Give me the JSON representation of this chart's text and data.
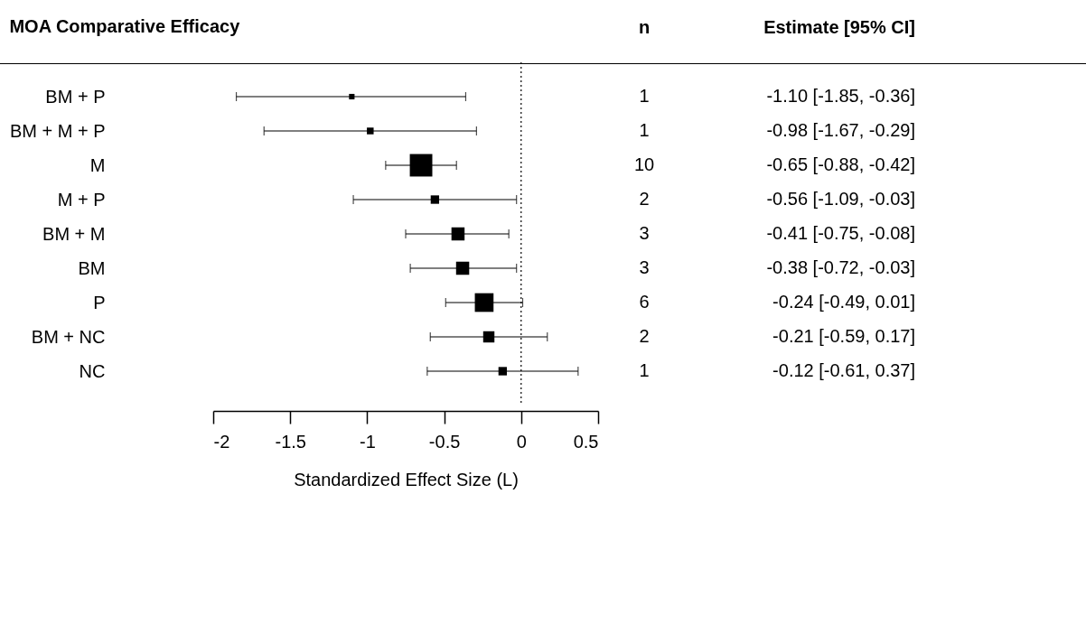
{
  "chart_data": {
    "type": "bubble",
    "title": "MOA Comparative Efficacy",
    "xlabel": "Standardized Effect Size (L)",
    "orientation": "horizontal",
    "marker": "square",
    "color": "#000000",
    "categories": [
      "BM + P",
      "BM + M + P",
      "M",
      "M + P",
      "BM + M",
      "BM",
      "P",
      "BM + NC",
      "NC"
    ],
    "values": [
      -1.1,
      -0.98,
      -0.65,
      -0.56,
      -0.41,
      -0.38,
      -0.24,
      -0.21,
      -0.12
    ],
    "errors": [
      [
        -1.85,
        -0.36
      ],
      [
        -1.67,
        -0.29
      ],
      [
        -0.88,
        -0.42
      ],
      [
        -1.09,
        -0.03
      ],
      [
        -0.75,
        -0.08
      ],
      [
        -0.72,
        -0.03
      ],
      [
        -0.49,
        0.01
      ],
      [
        -0.59,
        0.17
      ],
      [
        -0.61,
        0.37
      ]
    ],
    "sizes": [
      0.06,
      0.09,
      1,
      0.14,
      0.34,
      0.34,
      0.69,
      0.25,
      0.14
    ],
    "value_labels": [
      "-1.10 [-1.85, -0.36]",
      "-0.98 [-1.67, -0.29]",
      "-0.65 [-0.88, -0.42]",
      "-0.56 [-1.09, -0.03]",
      "-0.41 [-0.75, -0.08]",
      "-0.38 [-0.72, -0.03]",
      "-0.24 [-0.49,  0.01]",
      "-0.21 [-0.59,  0.17]",
      "-0.12 [-0.61,  0.37]"
    ],
    "xlim": [
      -2,
      0.5
    ],
    "xticks": [
      -2,
      -1.5,
      -1,
      -0.5,
      0,
      0.5
    ],
    "ref_lines": [
      {
        "axis": "x",
        "value": 0,
        "line_style": "dotted"
      }
    ],
    "grid": false,
    "legend": false,
    "annotations": [
      "n",
      "Estimate [95% CI]",
      "1",
      "1",
      "10",
      "2",
      "3",
      "3",
      "6",
      "2",
      "1"
    ]
  }
}
